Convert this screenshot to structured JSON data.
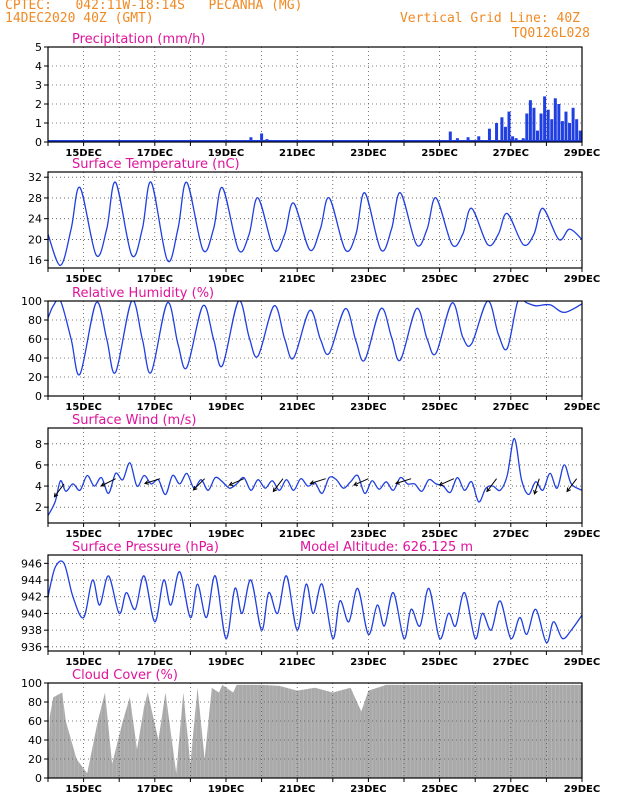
{
  "header": {
    "line1": "CPTEC:   042:11W-18:14S   PECANHA (MG)",
    "line2": "14DEC2020 40Z (GMT)",
    "grid_note": "Vertical Grid Line: 40Z",
    "code": "TQ0126L028",
    "color": "#f08a24"
  },
  "colors": {
    "title": "#e0139c",
    "series": "#1f3fe0",
    "wind_arrow": "#000000",
    "cloud": "#a9a9a9",
    "grid": "#555555"
  },
  "x_axis": {
    "start": "14DEC",
    "end": "29DEC",
    "tick_labels": [
      "15DEC",
      "17DEC",
      "19DEC",
      "21DEC",
      "23DEC",
      "25DEC",
      "27DEC",
      "29DEC"
    ]
  },
  "chart_data": [
    {
      "id": "precip",
      "type": "bar",
      "title": "Precipitation (mm/h)",
      "ylim": [
        0,
        5
      ],
      "yticks": [
        0,
        1,
        2,
        3,
        4,
        5
      ],
      "grid": true,
      "x_units": "days since 14DEC 00Z",
      "x": [
        1.0,
        2.0,
        3.0,
        4.0,
        5.0,
        5.7,
        6.0,
        6.15,
        7.0,
        8.0,
        9.0,
        10.0,
        11.0,
        11.3,
        11.5,
        11.8,
        12.1,
        12.4,
        12.6,
        12.75,
        12.85,
        12.95,
        13.05,
        13.15,
        13.25,
        13.35,
        13.45,
        13.55,
        13.65,
        13.75,
        13.85,
        13.95,
        14.05,
        14.15,
        14.25,
        14.35,
        14.45,
        14.55,
        14.65,
        14.75,
        14.85,
        14.95
      ],
      "values": [
        0.05,
        0.05,
        0.05,
        0.05,
        0.05,
        0.25,
        0.45,
        0.15,
        0.05,
        0.05,
        0.05,
        0.05,
        0.1,
        0.55,
        0.2,
        0.25,
        0.3,
        0.7,
        1.0,
        1.3,
        0.8,
        1.6,
        0.3,
        0.2,
        0.1,
        0.2,
        1.5,
        2.2,
        1.8,
        0.6,
        1.5,
        2.4,
        1.7,
        1.2,
        2.3,
        2.0,
        1.1,
        1.6,
        1.0,
        1.8,
        1.2,
        0.6
      ]
    },
    {
      "id": "temp",
      "type": "line",
      "title": "Surface Temperature (nC)",
      "ylim": [
        14.5,
        33
      ],
      "yticks": [
        16,
        20,
        24,
        28,
        32
      ],
      "grid": true,
      "x": [
        0.0,
        0.35,
        0.65,
        0.9,
        1.35,
        1.65,
        1.9,
        2.35,
        2.65,
        2.9,
        3.35,
        3.65,
        3.9,
        4.35,
        4.65,
        4.9,
        5.35,
        5.65,
        5.9,
        6.35,
        6.65,
        6.9,
        7.35,
        7.65,
        7.9,
        8.35,
        8.65,
        8.9,
        9.35,
        9.65,
        9.9,
        10.35,
        10.65,
        10.9,
        11.35,
        11.65,
        11.9,
        12.35,
        12.65,
        12.9,
        13.35,
        13.65,
        13.9,
        14.35,
        14.65,
        15.0
      ],
      "values": [
        21,
        15,
        22,
        30,
        17,
        22,
        31,
        17,
        22,
        31,
        16,
        22,
        31,
        18,
        22,
        30,
        18,
        21,
        28,
        18,
        21,
        27,
        18,
        22,
        28,
        18,
        21,
        29,
        18,
        22,
        29,
        19,
        22,
        28,
        19,
        21,
        26,
        19,
        21,
        25,
        19,
        21,
        26,
        20,
        22,
        20
      ]
    },
    {
      "id": "rh",
      "type": "line",
      "title": "Relative Humidity (%)",
      "ylim": [
        0,
        100
      ],
      "yticks": [
        0,
        20,
        40,
        60,
        80,
        100
      ],
      "grid": true,
      "x": [
        0.0,
        0.15,
        0.35,
        0.65,
        0.9,
        1.35,
        1.65,
        1.9,
        2.35,
        2.65,
        2.9,
        3.35,
        3.65,
        3.9,
        4.35,
        4.65,
        4.9,
        5.35,
        5.65,
        5.9,
        6.35,
        6.65,
        6.9,
        7.35,
        7.65,
        7.9,
        8.35,
        8.65,
        8.9,
        9.35,
        9.65,
        9.9,
        10.35,
        10.65,
        10.9,
        11.35,
        11.65,
        11.9,
        12.35,
        12.65,
        12.9,
        13.2,
        13.45,
        13.7,
        14.1,
        14.5,
        15.0
      ],
      "values": [
        82,
        95,
        100,
        60,
        23,
        98,
        60,
        25,
        100,
        60,
        25,
        98,
        55,
        30,
        95,
        60,
        32,
        100,
        62,
        42,
        95,
        60,
        40,
        90,
        60,
        45,
        92,
        58,
        38,
        92,
        62,
        38,
        92,
        60,
        45,
        98,
        62,
        55,
        100,
        65,
        50,
        100,
        98,
        95,
        96,
        88,
        97
      ]
    },
    {
      "id": "wind",
      "type": "line",
      "title": "Surface Wind (m/s)",
      "ylim": [
        0.5,
        9.5
      ],
      "yticks": [
        2,
        4,
        6,
        8
      ],
      "grid": true,
      "x": [
        0.0,
        0.2,
        0.35,
        0.5,
        0.7,
        0.9,
        1.1,
        1.3,
        1.5,
        1.7,
        1.9,
        2.1,
        2.3,
        2.5,
        2.7,
        2.9,
        3.1,
        3.3,
        3.5,
        3.7,
        3.9,
        4.1,
        4.3,
        4.5,
        4.7,
        4.9,
        5.1,
        5.3,
        5.5,
        5.7,
        5.9,
        6.1,
        6.3,
        6.5,
        6.7,
        6.9,
        7.1,
        7.3,
        7.5,
        7.7,
        7.9,
        8.1,
        8.3,
        8.5,
        8.7,
        8.9,
        9.1,
        9.3,
        9.5,
        9.7,
        9.9,
        10.1,
        10.3,
        10.5,
        10.7,
        10.9,
        11.1,
        11.3,
        11.5,
        11.7,
        11.9,
        12.1,
        12.3,
        12.5,
        12.7,
        12.9,
        13.1,
        13.3,
        13.5,
        13.7,
        13.9,
        14.1,
        14.3,
        14.5,
        14.7,
        15.0
      ],
      "values": [
        1.2,
        2.5,
        4.5,
        3.5,
        4.2,
        3.6,
        5.0,
        4.0,
        4.8,
        3.3,
        5.2,
        4.6,
        6.2,
        4.0,
        5.0,
        4.2,
        4.6,
        3.2,
        5.0,
        4.2,
        5.2,
        3.8,
        4.6,
        3.6,
        4.8,
        4.4,
        3.8,
        4.2,
        4.8,
        3.6,
        4.6,
        3.8,
        4.5,
        3.6,
        4.6,
        3.6,
        4.7,
        4.0,
        4.3,
        3.3,
        4.8,
        4.6,
        3.8,
        4.4,
        5.0,
        3.3,
        4.5,
        3.7,
        4.4,
        3.6,
        4.8,
        4.2,
        4.2,
        3.5,
        4.6,
        4.2,
        4.0,
        3.4,
        4.8,
        3.6,
        4.4,
        2.5,
        3.8,
        4.0,
        3.6,
        5.0,
        8.5,
        4.6,
        3.2,
        4.4,
        3.6,
        5.2,
        3.8,
        6.0,
        4.2,
        3.6
      ],
      "arrows": [
        {
          "x": 0.45,
          "y": 4.2,
          "dx": -0.6,
          "dy": -0.8
        },
        {
          "x": 1.9,
          "y": 4.7,
          "dx": -0.9,
          "dy": -0.45
        },
        {
          "x": 3.15,
          "y": 4.7,
          "dx": -0.95,
          "dy": -0.3
        },
        {
          "x": 4.4,
          "y": 4.7,
          "dx": -0.7,
          "dy": -0.7
        },
        {
          "x": 5.5,
          "y": 4.7,
          "dx": -0.9,
          "dy": -0.4
        },
        {
          "x": 6.6,
          "y": 4.7,
          "dx": -0.6,
          "dy": -0.8
        },
        {
          "x": 7.8,
          "y": 4.7,
          "dx": -0.95,
          "dy": -0.3
        },
        {
          "x": 9.0,
          "y": 4.7,
          "dx": -0.9,
          "dy": -0.4
        },
        {
          "x": 10.2,
          "y": 4.7,
          "dx": -0.95,
          "dy": -0.3
        },
        {
          "x": 11.4,
          "y": 4.7,
          "dx": -0.9,
          "dy": -0.4
        },
        {
          "x": 12.6,
          "y": 4.7,
          "dx": -0.6,
          "dy": -0.8
        },
        {
          "x": 13.8,
          "y": 4.7,
          "dx": -0.3,
          "dy": -0.95
        },
        {
          "x": 14.85,
          "y": 4.7,
          "dx": -0.6,
          "dy": -0.8
        }
      ]
    },
    {
      "id": "pressure",
      "type": "line",
      "title": "Surface Pressure (hPa)",
      "annotation": "Model Altitude: 626.125 m",
      "ylim": [
        935.5,
        947
      ],
      "yticks": [
        936,
        938,
        940,
        942,
        944,
        946
      ],
      "grid": true,
      "x": [
        0.0,
        0.2,
        0.45,
        0.7,
        1.0,
        1.25,
        1.45,
        1.7,
        2.0,
        2.2,
        2.45,
        2.7,
        3.0,
        3.25,
        3.45,
        3.7,
        4.0,
        4.2,
        4.45,
        4.7,
        5.0,
        5.25,
        5.45,
        5.7,
        6.0,
        6.2,
        6.45,
        6.7,
        7.0,
        7.25,
        7.45,
        7.7,
        8.0,
        8.2,
        8.45,
        8.7,
        9.0,
        9.25,
        9.45,
        9.7,
        10.0,
        10.2,
        10.45,
        10.7,
        11.0,
        11.25,
        11.45,
        11.7,
        12.0,
        12.2,
        12.45,
        12.7,
        13.0,
        13.25,
        13.45,
        13.7,
        14.0,
        14.2,
        14.45,
        14.7,
        15.0
      ],
      "values": [
        942,
        945.5,
        946,
        942,
        939.5,
        944,
        941,
        944.5,
        940,
        942.5,
        940.5,
        944.5,
        939,
        944,
        941,
        945,
        939.5,
        943.5,
        939.5,
        944.5,
        937,
        943,
        940,
        944,
        938,
        942.5,
        940,
        944.5,
        938,
        943.5,
        940,
        943.5,
        937,
        941.5,
        939,
        943,
        937.5,
        941,
        938.5,
        942.5,
        937,
        940.5,
        938.5,
        943,
        937,
        940,
        938.5,
        942.5,
        937,
        940,
        938,
        941.5,
        937,
        939.5,
        937.5,
        940.5,
        936.5,
        939,
        937,
        938,
        939.8
      ]
    },
    {
      "id": "cloud",
      "type": "area",
      "title": "Cloud Cover (%)",
      "ylim": [
        0,
        100
      ],
      "yticks": [
        0,
        20,
        40,
        60,
        80,
        100
      ],
      "grid": true,
      "x": [
        0.0,
        0.05,
        0.15,
        0.4,
        0.5,
        0.8,
        1.1,
        1.4,
        1.6,
        1.8,
        2.1,
        2.3,
        2.5,
        2.7,
        2.8,
        3.1,
        3.3,
        3.6,
        3.8,
        4.0,
        4.2,
        4.4,
        4.6,
        4.8,
        4.9,
        5.2,
        5.3,
        5.6,
        6.0,
        6.5,
        7.0,
        7.5,
        8.0,
        8.5,
        8.8,
        9.0,
        9.5,
        10.0,
        10.5,
        11.0,
        11.5,
        12.0,
        12.5,
        13.0,
        13.5,
        14.0,
        14.5,
        15.0
      ],
      "values": [
        0,
        65,
        85,
        90,
        60,
        20,
        5,
        60,
        90,
        15,
        60,
        85,
        30,
        75,
        90,
        40,
        90,
        5,
        90,
        15,
        95,
        20,
        95,
        90,
        98,
        90,
        98,
        98,
        98,
        97,
        92,
        95,
        90,
        95,
        70,
        92,
        98,
        98,
        98,
        98,
        98,
        98,
        98,
        98,
        98,
        98,
        98,
        98
      ]
    }
  ]
}
